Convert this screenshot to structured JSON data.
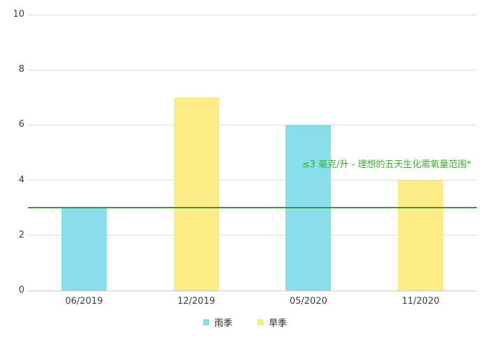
{
  "chart_data": {
    "type": "bar",
    "categories": [
      "06/2019",
      "12/2019",
      "05/2020",
      "11/2020"
    ],
    "series": [
      {
        "name": "雨季",
        "color": "#8ADEE9",
        "values": [
          3,
          null,
          6,
          null
        ]
      },
      {
        "name": "旱季",
        "color": "#FCEC87",
        "values": [
          null,
          7,
          null,
          4
        ]
      }
    ],
    "title": "",
    "xlabel": "",
    "ylabel": "",
    "ylim": [
      0,
      10
    ],
    "yticks": [
      0,
      2,
      4,
      6,
      8,
      10
    ],
    "grid": true,
    "gridline_color": "#dcdcdc",
    "baseline_color": "#c9c9c9",
    "legend_position": "bottom",
    "reference_line": {
      "value": 3,
      "color": "#2E9E26",
      "label": "≤3 毫克/升 - 理想的五天生化需氧量范围*",
      "label_color": "#3CAD2E"
    }
  }
}
